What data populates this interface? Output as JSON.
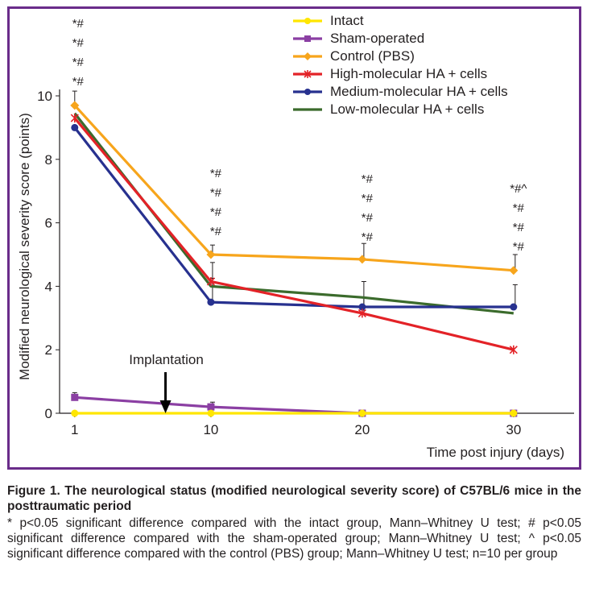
{
  "chart_data": {
    "type": "line",
    "xlabel": "Time post injury (days)",
    "ylabel": "Modified neurological severity score (points)",
    "x": [
      1,
      10,
      20,
      30
    ],
    "xticks": [
      "1",
      "10",
      "20",
      "30"
    ],
    "ylim": [
      0,
      10
    ],
    "yticks": [
      "0",
      "2",
      "4",
      "6",
      "8",
      "10"
    ],
    "grid": false,
    "legend_position": "top-right",
    "series": [
      {
        "name": "Intact",
        "color": "#ffe600",
        "marker": "circle",
        "values": [
          0,
          0,
          0,
          0
        ],
        "errors": [
          0,
          0,
          0,
          0
        ]
      },
      {
        "name": "Sham-operated",
        "color": "#8b3fa3",
        "marker": "square",
        "values": [
          0.5,
          0.2,
          0,
          0
        ],
        "errors": [
          0.15,
          0.15,
          0,
          0
        ]
      },
      {
        "name": "Control (PBS)",
        "color": "#f7a51c",
        "marker": "diamond",
        "values": [
          9.7,
          5.0,
          4.85,
          4.5
        ],
        "errors": [
          0.45,
          0.3,
          0.5,
          0.5
        ]
      },
      {
        "name": "High-molecular HA + cells",
        "color": "#e32227",
        "marker": "star",
        "values": [
          9.3,
          4.15,
          3.15,
          2.0
        ],
        "errors": [
          0,
          0.6,
          0.5,
          0
        ]
      },
      {
        "name": "Medium-molecular HA + cells",
        "color": "#27318f",
        "marker": "circle",
        "values": [
          9.0,
          3.5,
          3.35,
          3.35
        ],
        "errors": [
          0,
          0.75,
          0.8,
          0.7
        ]
      },
      {
        "name": "Low-molecular HA + cells",
        "color": "#3b6b2c",
        "marker": "none",
        "values": [
          9.45,
          4.0,
          3.65,
          3.15
        ],
        "errors": [
          0,
          0,
          0,
          0
        ]
      }
    ],
    "significance": [
      {
        "x": 1,
        "marks": [
          "*#",
          "*#",
          "*#",
          "*#"
        ]
      },
      {
        "x": 10,
        "marks": [
          "*#",
          "*#",
          "*#",
          "*#"
        ]
      },
      {
        "x": 20,
        "marks": [
          "*#",
          "*#",
          "*#",
          "*#"
        ]
      },
      {
        "x": 30,
        "marks": [
          "*#^",
          "*#",
          "*#",
          "*#"
        ]
      }
    ],
    "annotation": {
      "text": "Implantation",
      "x": 7
    }
  },
  "caption": {
    "title": "Figure 1. The neurological status (modified neurological severity score) of C57BL/6 mice in the posttraumatic period",
    "notes": "* p<0.05 significant difference compared with the intact group, Mann–Whitney U test; # p<0.05 significant difference compared with the sham-operated group; Mann–Whitney U test; ^ p<0.05 significant difference compared with the control (PBS) group; Mann–Whitney U test; n=10 per group"
  }
}
